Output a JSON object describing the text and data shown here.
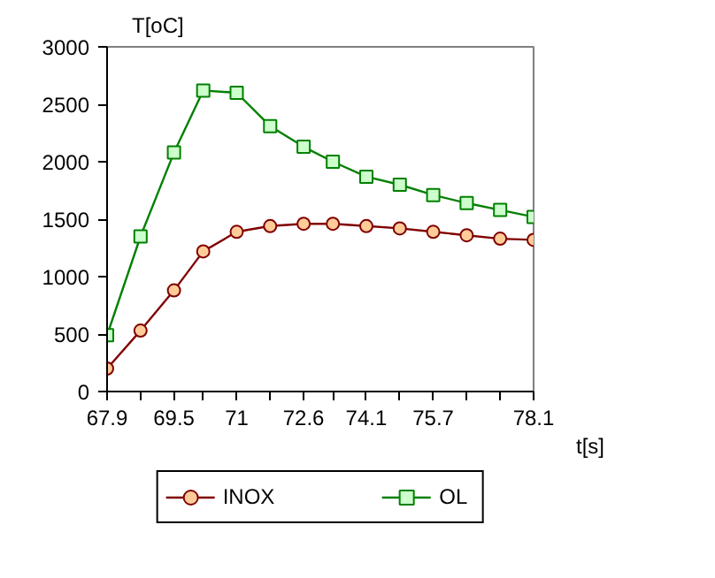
{
  "chart_data": {
    "type": "line",
    "xlabel": "t[s]",
    "ylabel": "T[oC]",
    "x": [
      67.9,
      68.7,
      69.5,
      70.2,
      71,
      71.8,
      72.6,
      73.3,
      74.1,
      74.9,
      75.7,
      76.5,
      77.3,
      78.1
    ],
    "series": [
      {
        "name": "INOX",
        "color": "#800000",
        "marker": "circle",
        "values": [
          200,
          530,
          880,
          1220,
          1390,
          1440,
          1460,
          1460,
          1440,
          1420,
          1390,
          1360,
          1330,
          1320
        ]
      },
      {
        "name": "OL",
        "color": "#008000",
        "marker": "square",
        "values": [
          490,
          1350,
          2080,
          2620,
          2600,
          2310,
          2130,
          2000,
          1870,
          1800,
          1710,
          1640,
          1580,
          1520
        ]
      }
    ],
    "xlim": [
      67.9,
      78.1
    ],
    "xticks": [
      67.9,
      {
        "value": 68.7,
        "label": null
      },
      69.5,
      {
        "value": 70.2,
        "label": null
      },
      71,
      {
        "value": 71.8,
        "label": null
      },
      72.6,
      {
        "value": 73.3,
        "label": null
      },
      74.1,
      {
        "value": 74.9,
        "label": null
      },
      75.7,
      {
        "value": 76.5,
        "label": null
      },
      {
        "value": 77.3,
        "label": null
      },
      78.1
    ],
    "ylim": [
      0,
      3000
    ],
    "yticks": [
      0,
      500,
      1000,
      1500,
      2000,
      2500,
      3000
    ],
    "grid": false,
    "legend": "bottom",
    "line_style": "solid"
  }
}
